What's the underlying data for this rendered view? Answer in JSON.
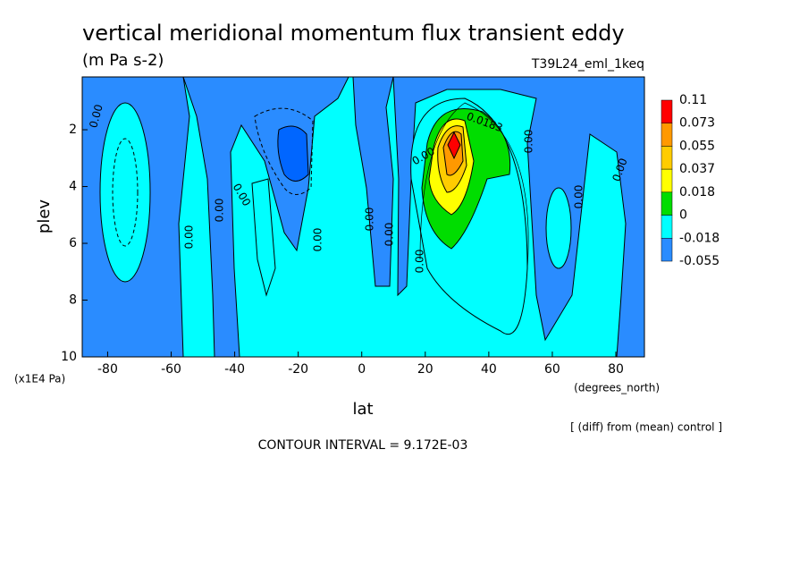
{
  "chart_data": {
    "type": "contour",
    "title": "vertical meridional momentum flux transient eddy",
    "subtitle": "(m Pa s-2)",
    "run_label": "T39L24_eml_1keq",
    "x_label": "lat",
    "x_units": "(degrees_north)",
    "y_label": "plev",
    "y_units": "(x1E4 Pa)",
    "note": "[ (diff) from (mean) control ]",
    "contour_interval": "CONTOUR INTERVAL = 9.172E-03",
    "xlim": [
      -88,
      89
    ],
    "ylim": [
      10,
      0.14
    ],
    "xticks": [
      -80,
      -60,
      -40,
      -20,
      0,
      20,
      40,
      60,
      80
    ],
    "yticks": [
      2,
      4,
      6,
      8,
      10
    ],
    "levels": [
      0.11,
      0.073,
      0.055,
      0.037,
      0.018,
      0,
      -0.018,
      -0.055
    ],
    "colors": [
      "#ff0000",
      "#ff9900",
      "#ffcc00",
      "#ffff00",
      "#00dd00",
      "#00ffff",
      "#2a8cff",
      "#0066ff"
    ],
    "contour_labels": [
      "0.00",
      "0.00",
      "0.00",
      "0.00",
      "0.00",
      "0.00",
      "0.00",
      "0.00",
      "0.00",
      "0.00",
      "0.00",
      "0.00",
      "0.0183"
    ]
  }
}
